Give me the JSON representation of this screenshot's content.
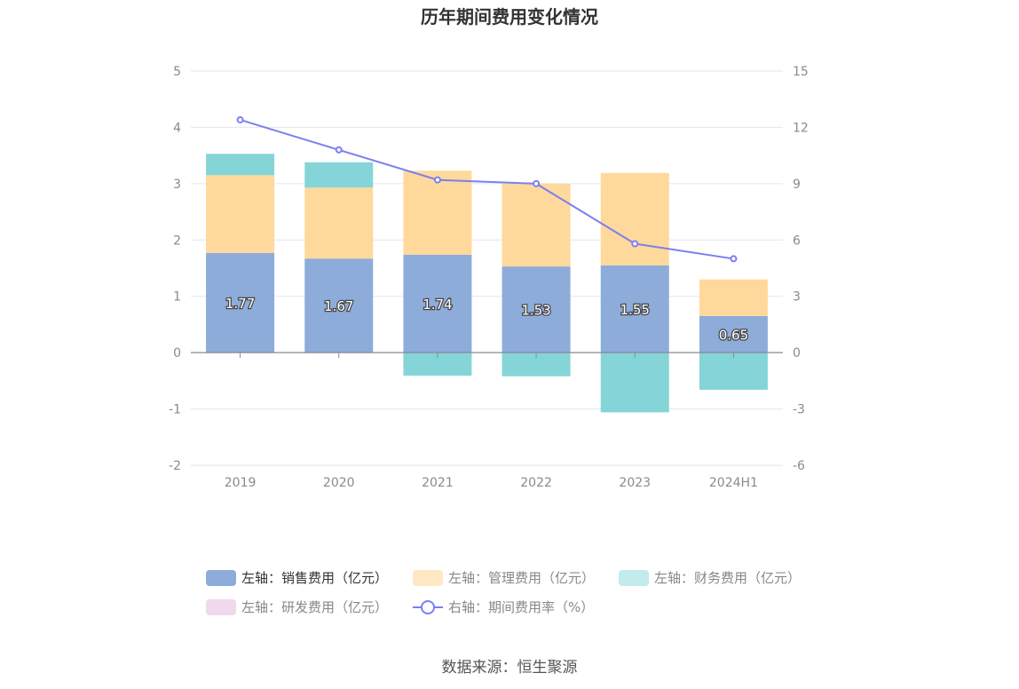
{
  "chart_data": {
    "type": "bar",
    "title": "历年期间费用变化情况",
    "categories": [
      "2019",
      "2020",
      "2021",
      "2022",
      "2023",
      "2024H1"
    ],
    "left_axis": {
      "ylim": [
        -2,
        5
      ],
      "ticks": [
        "5",
        "4",
        "3",
        "2",
        "1",
        "0",
        "-1",
        "-2"
      ]
    },
    "right_axis": {
      "ylim": [
        -6,
        15
      ],
      "ticks": [
        "15",
        "12",
        "9",
        "6",
        "3",
        "0",
        "-3",
        "-6"
      ]
    },
    "series": [
      {
        "name": "左轴：销售费用（亿元）",
        "axis": "left",
        "type": "bar",
        "stack": "fee",
        "color": "#8eacd9",
        "values": [
          1.77,
          1.67,
          1.74,
          1.53,
          1.55,
          0.65
        ],
        "labels": [
          "1.77",
          "1.67",
          "1.74",
          "1.53",
          "1.55",
          "0.65"
        ]
      },
      {
        "name": "左轴：管理费用（亿元）",
        "axis": "left",
        "type": "bar",
        "stack": "fee",
        "color": "#ffd99b",
        "values": [
          1.38,
          1.26,
          1.49,
          1.47,
          1.64,
          0.65
        ]
      },
      {
        "name": "左轴：财务费用（亿元）",
        "axis": "left",
        "type": "bar",
        "stack": "fee",
        "color": "#85d5d8",
        "values": [
          0.38,
          0.45,
          -0.41,
          -0.42,
          -1.06,
          -0.66
        ]
      },
      {
        "name": "左轴：研发费用（亿元）",
        "axis": "left",
        "type": "bar",
        "stack": "fee",
        "color": "#f0d9ec",
        "values": [
          0,
          0,
          0,
          0,
          0,
          0
        ]
      },
      {
        "name": "右轴：期间费用率（%）",
        "axis": "right",
        "type": "line",
        "color": "#7b7ff0",
        "values": [
          12.4,
          10.8,
          9.2,
          9.0,
          5.8,
          5.0
        ]
      }
    ],
    "legend_position": "bottom",
    "grid": true
  },
  "legend": [
    {
      "label": "左轴：销售费用（亿元）",
      "color": "#8eacd9",
      "text_color": "#333333",
      "kind": "bar"
    },
    {
      "label": "左轴：管理费用（亿元）",
      "color": "#ffe8c4",
      "text_color": "#888888",
      "kind": "bar"
    },
    {
      "label": "左轴：财务费用（亿元）",
      "color": "#c3eaec",
      "text_color": "#888888",
      "kind": "bar"
    },
    {
      "label": "左轴：研发费用（亿元）",
      "color": "#f0d9ec",
      "text_color": "#888888",
      "kind": "bar"
    },
    {
      "label": "右轴：期间费用率（%）",
      "color": "#7b7ff0",
      "text_color": "#888888",
      "kind": "line"
    }
  ],
  "source": "数据来源：恒生聚源"
}
